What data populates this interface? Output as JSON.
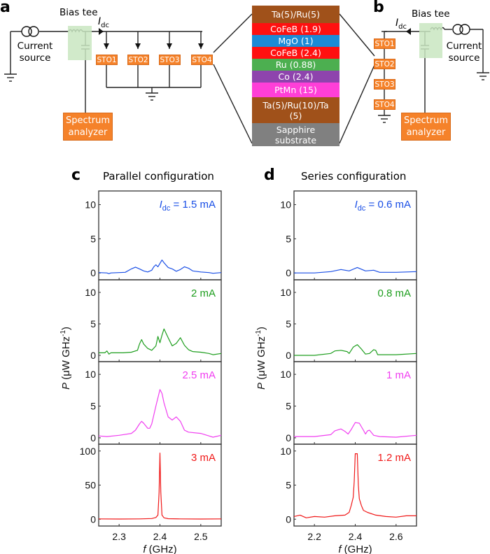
{
  "figure": {
    "panel_a": {
      "letter": "a",
      "bias_tee_label": "Bias tee",
      "current_label": "I",
      "current_subscript": "dc",
      "current_source_label_1": "Current",
      "current_source_label_2": "source",
      "stos": [
        "STO1",
        "STO2",
        "STO3",
        "STO4"
      ],
      "spectrum_analyzer_1": "Spectrum",
      "spectrum_analyzer_2": "analyzer"
    },
    "stack": {
      "layers": [
        {
          "label": "Ta(5)/Ru(5)",
          "color": "#a0511a"
        },
        {
          "label": "CoFeB (1.9)",
          "color": "#ff1010"
        },
        {
          "label": "MgO (1)",
          "color": "#1c8bd6"
        },
        {
          "label": "CoFeB (2.4)",
          "color": "#ff1010"
        },
        {
          "label": "Ru (0.88)",
          "color": "#4caf50"
        },
        {
          "label": "Co (2.4)",
          "color": "#8e44ad"
        },
        {
          "label": "PtMn (15)",
          "color": "#ff3fd8"
        },
        {
          "label": "Ta(5)/Ru(10)/Ta (5)",
          "color": "#a0511a"
        },
        {
          "label": "Sapphire substrate",
          "color": "#808080"
        }
      ]
    },
    "panel_b": {
      "letter": "b",
      "bias_tee_label": "Bias tee",
      "current_label": "I",
      "current_subscript": "dc",
      "current_source_label_1": "Current",
      "current_source_label_2": "source",
      "stos": [
        "STO1",
        "STO2",
        "STO3",
        "STO4"
      ],
      "spectrum_analyzer_1": "Spectrum",
      "spectrum_analyzer_2": "analyzer"
    }
  },
  "chart_data": [
    {
      "type": "line",
      "panel": "c",
      "title": "Parallel configuration",
      "xlabel": "f (GHz)",
      "ylabel": "P (μW GHz⁻¹)",
      "xlim": [
        2.25,
        2.55
      ],
      "xticks": [
        2.3,
        2.4,
        2.5
      ],
      "subplots": [
        {
          "label": "I_dc = 1.5 mA",
          "label_prefix": "I",
          "label_sub": "dc",
          "label_rest": " = 1.5 mA",
          "color": "#1a4fe6",
          "ylim": [
            -1,
            12
          ],
          "yticks": [
            0,
            5,
            10
          ],
          "points": [
            [
              2.25,
              0.05
            ],
            [
              2.27,
              0.0
            ],
            [
              2.275,
              -0.1
            ],
            [
              2.28,
              0.0
            ],
            [
              2.3,
              0.05
            ],
            [
              2.315,
              0.1
            ],
            [
              2.33,
              0.6
            ],
            [
              2.34,
              0.85
            ],
            [
              2.35,
              0.6
            ],
            [
              2.36,
              0.3
            ],
            [
              2.37,
              0.15
            ],
            [
              2.38,
              0.4
            ],
            [
              2.385,
              0.9
            ],
            [
              2.39,
              1.2
            ],
            [
              2.395,
              0.9
            ],
            [
              2.4,
              1.4
            ],
            [
              2.405,
              1.9
            ],
            [
              2.41,
              1.5
            ],
            [
              2.42,
              0.8
            ],
            [
              2.43,
              0.6
            ],
            [
              2.44,
              0.25
            ],
            [
              2.45,
              0.5
            ],
            [
              2.46,
              0.9
            ],
            [
              2.47,
              0.7
            ],
            [
              2.48,
              0.3
            ],
            [
              2.5,
              0.15
            ],
            [
              2.52,
              0.05
            ],
            [
              2.53,
              -0.05
            ],
            [
              2.55,
              0.05
            ]
          ]
        },
        {
          "label": "2 mA",
          "color": "#1e9e1e",
          "ylim": [
            -1,
            12
          ],
          "yticks": [
            0,
            5,
            10
          ],
          "points": [
            [
              2.25,
              0.4
            ],
            [
              2.265,
              0.4
            ],
            [
              2.27,
              0.7
            ],
            [
              2.275,
              0.2
            ],
            [
              2.28,
              0.4
            ],
            [
              2.31,
              0.4
            ],
            [
              2.33,
              0.5
            ],
            [
              2.345,
              0.8
            ],
            [
              2.35,
              1.8
            ],
            [
              2.355,
              2.5
            ],
            [
              2.36,
              1.8
            ],
            [
              2.37,
              1.1
            ],
            [
              2.38,
              0.8
            ],
            [
              2.39,
              1.5
            ],
            [
              2.395,
              3.0
            ],
            [
              2.4,
              2.0
            ],
            [
              2.405,
              3.2
            ],
            [
              2.41,
              4.2
            ],
            [
              2.42,
              2.8
            ],
            [
              2.43,
              1.5
            ],
            [
              2.44,
              1.9
            ],
            [
              2.45,
              2.8
            ],
            [
              2.46,
              1.6
            ],
            [
              2.47,
              0.9
            ],
            [
              2.48,
              0.6
            ],
            [
              2.5,
              0.5
            ],
            [
              2.52,
              0.3
            ],
            [
              2.53,
              0.1
            ],
            [
              2.55,
              0.3
            ]
          ]
        },
        {
          "label": "2.5 mA",
          "color": "#f03ef0",
          "ylim": [
            -1,
            12
          ],
          "yticks": [
            0,
            5,
            10
          ],
          "points": [
            [
              2.25,
              0.3
            ],
            [
              2.27,
              0.2
            ],
            [
              2.3,
              0.4
            ],
            [
              2.33,
              0.7
            ],
            [
              2.34,
              1.2
            ],
            [
              2.35,
              2.2
            ],
            [
              2.355,
              2.6
            ],
            [
              2.36,
              2.3
            ],
            [
              2.37,
              1.5
            ],
            [
              2.375,
              1.5
            ],
            [
              2.38,
              2.2
            ],
            [
              2.39,
              5.0
            ],
            [
              2.4,
              7.6
            ],
            [
              2.405,
              7.0
            ],
            [
              2.41,
              5.5
            ],
            [
              2.42,
              3.3
            ],
            [
              2.43,
              2.8
            ],
            [
              2.44,
              3.3
            ],
            [
              2.45,
              2.6
            ],
            [
              2.46,
              1.2
            ],
            [
              2.47,
              0.9
            ],
            [
              2.5,
              0.7
            ],
            [
              2.52,
              0.3
            ],
            [
              2.53,
              0.1
            ],
            [
              2.55,
              0.4
            ]
          ]
        },
        {
          "label": "3 mA",
          "color": "#f01818",
          "ylim": [
            -10,
            110
          ],
          "yticks": [
            0,
            50,
            100
          ],
          "points": [
            [
              2.25,
              0.5
            ],
            [
              2.3,
              0.3
            ],
            [
              2.35,
              0.5
            ],
            [
              2.38,
              1.0
            ],
            [
              2.39,
              2.5
            ],
            [
              2.395,
              6
            ],
            [
              2.398,
              40
            ],
            [
              2.4,
              97
            ],
            [
              2.402,
              40
            ],
            [
              2.405,
              6
            ],
            [
              2.41,
              2.0
            ],
            [
              2.42,
              0.8
            ],
            [
              2.45,
              0.5
            ],
            [
              2.5,
              0.3
            ],
            [
              2.55,
              0.5
            ]
          ]
        }
      ]
    },
    {
      "type": "line",
      "panel": "d",
      "title": "Series configuration",
      "xlabel": "f (GHz)",
      "ylabel": "P (μW GHz⁻¹)",
      "xlim": [
        2.1,
        2.7
      ],
      "xticks": [
        2.2,
        2.4,
        2.6
      ],
      "subplots": [
        {
          "label": "I_dc = 0.6 mA",
          "label_prefix": "I",
          "label_sub": "dc",
          "label_rest": " = 0.6 mA",
          "color": "#1a4fe6",
          "ylim": [
            -1,
            12
          ],
          "yticks": [
            0,
            5,
            10
          ],
          "points": [
            [
              2.1,
              0.0
            ],
            [
              2.2,
              0.0
            ],
            [
              2.28,
              0.2
            ],
            [
              2.33,
              0.5
            ],
            [
              2.37,
              0.3
            ],
            [
              2.41,
              0.8
            ],
            [
              2.45,
              0.3
            ],
            [
              2.49,
              0.4
            ],
            [
              2.52,
              0.1
            ],
            [
              2.6,
              0.1
            ],
            [
              2.7,
              0.2
            ]
          ]
        },
        {
          "label": "0.8 mA",
          "color": "#1e9e1e",
          "ylim": [
            -1,
            12
          ],
          "yticks": [
            0,
            5,
            10
          ],
          "points": [
            [
              2.1,
              0.0
            ],
            [
              2.2,
              0.0
            ],
            [
              2.28,
              0.3
            ],
            [
              2.3,
              0.7
            ],
            [
              2.33,
              0.8
            ],
            [
              2.36,
              0.6
            ],
            [
              2.37,
              0.3
            ],
            [
              2.39,
              1.3
            ],
            [
              2.41,
              1.7
            ],
            [
              2.43,
              1.0
            ],
            [
              2.45,
              0.2
            ],
            [
              2.47,
              0.3
            ],
            [
              2.49,
              0.9
            ],
            [
              2.5,
              0.8
            ],
            [
              2.51,
              0.1
            ],
            [
              2.6,
              0.1
            ],
            [
              2.7,
              0.3
            ]
          ]
        },
        {
          "label": "1 mA",
          "color": "#f03ef0",
          "ylim": [
            -1,
            12
          ],
          "yticks": [
            0,
            5,
            10
          ],
          "points": [
            [
              2.1,
              0.2
            ],
            [
              2.2,
              0.2
            ],
            [
              2.28,
              0.5
            ],
            [
              2.3,
              1.1
            ],
            [
              2.33,
              1.4
            ],
            [
              2.35,
              1.0
            ],
            [
              2.365,
              0.6
            ],
            [
              2.38,
              1.3
            ],
            [
              2.4,
              2.4
            ],
            [
              2.42,
              2.3
            ],
            [
              2.44,
              1.2
            ],
            [
              2.45,
              0.6
            ],
            [
              2.46,
              1.1
            ],
            [
              2.47,
              1.2
            ],
            [
              2.49,
              0.4
            ],
            [
              2.52,
              0.2
            ],
            [
              2.6,
              0.1
            ],
            [
              2.7,
              0.4
            ]
          ]
        },
        {
          "label": "1.2 mA",
          "color": "#f01818",
          "ylim": [
            -1,
            11
          ],
          "yticks": [
            0,
            5,
            10
          ],
          "points": [
            [
              2.1,
              0.4
            ],
            [
              2.13,
              0.6
            ],
            [
              2.16,
              0.2
            ],
            [
              2.2,
              0.4
            ],
            [
              2.25,
              0.3
            ],
            [
              2.3,
              0.5
            ],
            [
              2.35,
              0.6
            ],
            [
              2.37,
              1.0
            ],
            [
              2.38,
              2.0
            ],
            [
              2.39,
              3.2
            ],
            [
              2.395,
              5.5
            ],
            [
              2.4,
              9.6
            ],
            [
              2.41,
              9.6
            ],
            [
              2.415,
              5.0
            ],
            [
              2.42,
              3.0
            ],
            [
              2.43,
              2.0
            ],
            [
              2.44,
              1.3
            ],
            [
              2.46,
              1.0
            ],
            [
              2.5,
              0.6
            ],
            [
              2.55,
              0.4
            ],
            [
              2.6,
              0.3
            ],
            [
              2.65,
              0.5
            ],
            [
              2.7,
              0.5
            ]
          ]
        }
      ]
    }
  ]
}
